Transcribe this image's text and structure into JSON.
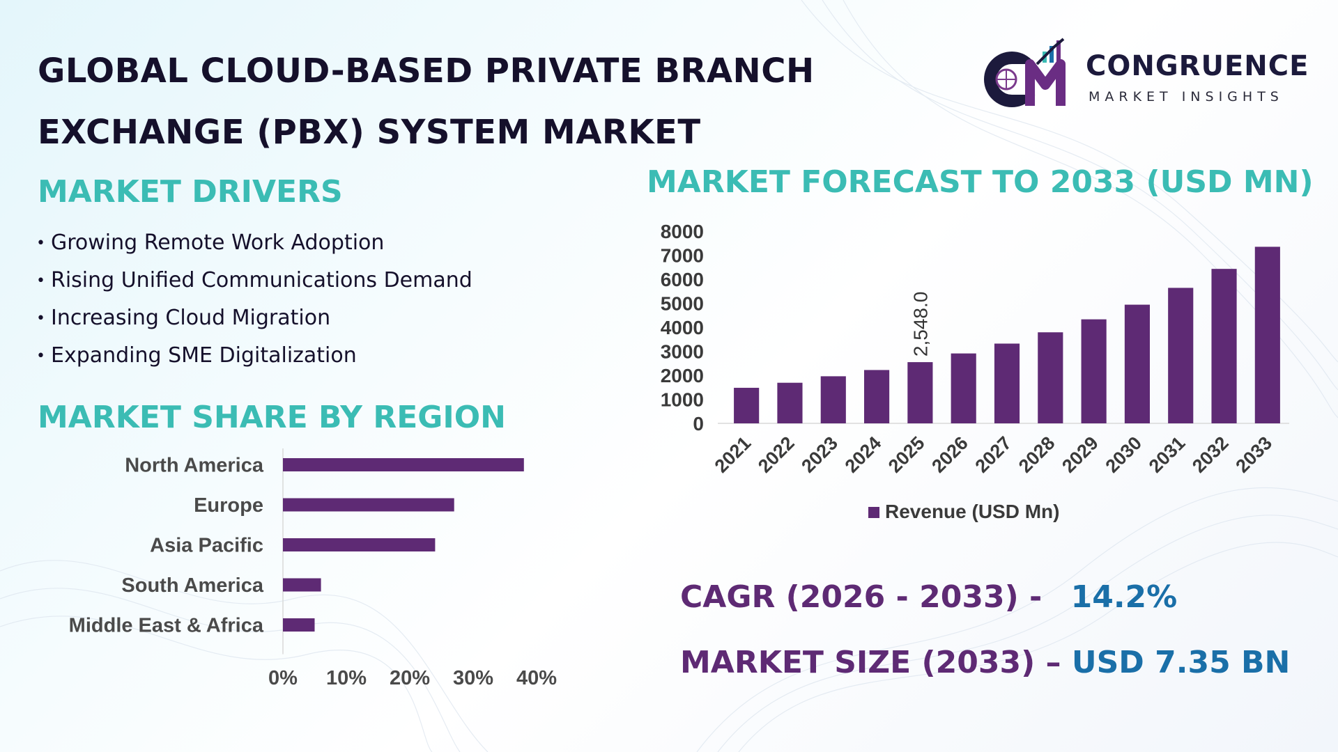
{
  "title": {
    "line1": "GLOBAL CLOUD-BASED PRIVATE BRANCH",
    "line2": "EXCHANGE (PBX) SYSTEM MARKET"
  },
  "logo": {
    "name": "CONGRUENCE",
    "sub": "MARKET INSIGHTS"
  },
  "drivers": {
    "heading": "MARKET DRIVERS",
    "items": [
      "Growing Remote Work Adoption",
      "Rising Unified Communications Demand",
      "Increasing Cloud Migration",
      "Expanding SME Digitalization"
    ]
  },
  "stats": {
    "cagr_label": "CAGR (2026 - 2033) -",
    "cagr_value": "14.2%",
    "size_label": "MARKET SIZE (2033) –",
    "size_value": "USD 7.35 BN"
  },
  "colors": {
    "bar": "#5e2a74",
    "heading": "#3bbcb4",
    "value": "#1a6fa8"
  },
  "chart_data": [
    {
      "type": "bar",
      "title": "MARKET FORECAST TO 2033 (USD MN)",
      "categories": [
        "2021",
        "2022",
        "2023",
        "2024",
        "2025",
        "2026",
        "2027",
        "2028",
        "2029",
        "2030",
        "2031",
        "2032",
        "2033"
      ],
      "series": [
        {
          "name": "Revenue (USD Mn)",
          "values": [
            1480,
            1690,
            1960,
            2220,
            2548.0,
            2910,
            3320,
            3790,
            4330,
            4940,
            5640,
            6430,
            7350
          ]
        }
      ],
      "data_labels": [
        {
          "category": "2025",
          "text": "2,548.0"
        }
      ],
      "ylim": [
        0,
        8000
      ],
      "yticks": [
        "0",
        "1000",
        "2000",
        "3000",
        "4000",
        "5000",
        "6000",
        "7000",
        "8000"
      ],
      "legend": "bottom",
      "grid": false
    },
    {
      "type": "bar",
      "orientation": "horizontal",
      "title": "MARKET SHARE BY REGION",
      "categories": [
        "North America",
        "Europe",
        "Asia Pacific",
        "South America",
        "Middle East & Africa"
      ],
      "values": [
        38,
        27,
        24,
        6,
        5
      ],
      "xlim": [
        0,
        40
      ],
      "xticks": [
        "0%",
        "10%",
        "20%",
        "30%",
        "40%"
      ],
      "grid": false
    }
  ]
}
